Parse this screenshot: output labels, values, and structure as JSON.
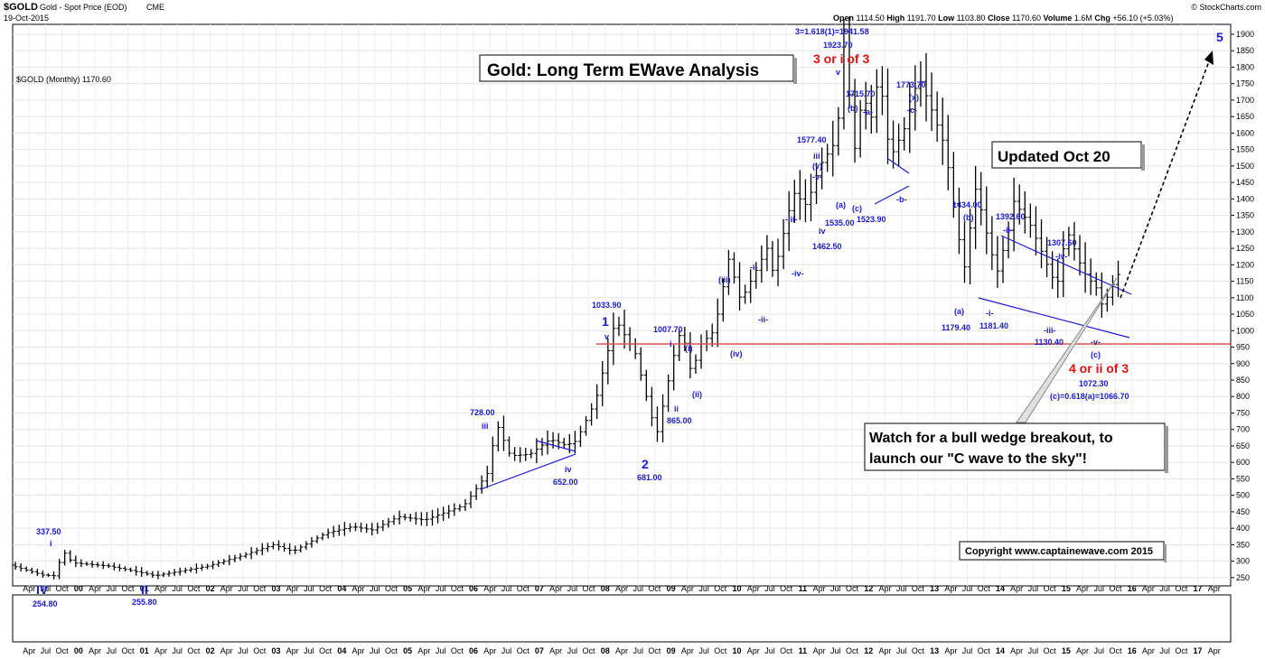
{
  "header": {
    "symbol": "$GOLD",
    "name": "Gold - Spot Price (EOD)",
    "exchange": "CME",
    "date": "19-Oct-2015",
    "brand": "© StockCharts.com",
    "open_label": "Open",
    "open": "1114.50",
    "high_label": "High",
    "high": "1191.70",
    "low_label": "Low",
    "low": "1103.80",
    "close_label": "Close",
    "close": "1170.60",
    "volume_label": "Volume",
    "volume": "1.6M",
    "chg_label": "Chg",
    "chg": "+56.10 (+5.03%)",
    "legend": "$GOLD (Monthly) 1170.60"
  },
  "colors": {
    "bars": "#000000",
    "wave": "#1a1ad0",
    "red": "#e01010",
    "support": "#e05050",
    "grid": "#dddddd"
  },
  "chart_data": {
    "type": "ohlc",
    "title": "Gold: Long Term EWave Analysis",
    "ylim": [
      225,
      1930
    ],
    "y_ticks": [
      250,
      300,
      350,
      400,
      450,
      500,
      550,
      600,
      650,
      700,
      750,
      800,
      850,
      900,
      950,
      1000,
      1050,
      1100,
      1150,
      1200,
      1250,
      1300,
      1350,
      1400,
      1450,
      1500,
      1550,
      1600,
      1650,
      1700,
      1750,
      1800,
      1850,
      1900
    ],
    "x_ticks": [
      {
        "t": 1999.25,
        "label": "Apr"
      },
      {
        "t": 1999.5,
        "label": "Jul"
      },
      {
        "t": 1999.75,
        "label": "Oct"
      },
      {
        "t": 2000,
        "label": "00"
      },
      {
        "t": 2000.25,
        "label": "Apr"
      },
      {
        "t": 2000.5,
        "label": "Jul"
      },
      {
        "t": 2000.75,
        "label": "Oct"
      },
      {
        "t": 2001,
        "label": "01"
      },
      {
        "t": 2001.25,
        "label": "Apr"
      },
      {
        "t": 2001.5,
        "label": "Jul"
      },
      {
        "t": 2001.75,
        "label": "Oct"
      },
      {
        "t": 2002,
        "label": "02"
      },
      {
        "t": 2002.25,
        "label": "Apr"
      },
      {
        "t": 2002.5,
        "label": "Jul"
      },
      {
        "t": 2002.75,
        "label": "Oct"
      },
      {
        "t": 2003,
        "label": "03"
      },
      {
        "t": 2003.25,
        "label": "Apr"
      },
      {
        "t": 2003.5,
        "label": "Jul"
      },
      {
        "t": 2003.75,
        "label": "Oct"
      },
      {
        "t": 2004,
        "label": "04"
      },
      {
        "t": 2004.25,
        "label": "Apr"
      },
      {
        "t": 2004.5,
        "label": "Jul"
      },
      {
        "t": 2004.75,
        "label": "Oct"
      },
      {
        "t": 2005,
        "label": "05"
      },
      {
        "t": 2005.25,
        "label": "Apr"
      },
      {
        "t": 2005.5,
        "label": "Jul"
      },
      {
        "t": 2005.75,
        "label": "Oct"
      },
      {
        "t": 2006,
        "label": "06"
      },
      {
        "t": 2006.25,
        "label": "Apr"
      },
      {
        "t": 2006.5,
        "label": "Jul"
      },
      {
        "t": 2006.75,
        "label": "Oct"
      },
      {
        "t": 2007,
        "label": "07"
      },
      {
        "t": 2007.25,
        "label": "Apr"
      },
      {
        "t": 2007.5,
        "label": "Jul"
      },
      {
        "t": 2007.75,
        "label": "Oct"
      },
      {
        "t": 2008,
        "label": "08"
      },
      {
        "t": 2008.25,
        "label": "Apr"
      },
      {
        "t": 2008.5,
        "label": "Jul"
      },
      {
        "t": 2008.75,
        "label": "Oct"
      },
      {
        "t": 2009,
        "label": "09"
      },
      {
        "t": 2009.25,
        "label": "Apr"
      },
      {
        "t": 2009.5,
        "label": "Jul"
      },
      {
        "t": 2009.75,
        "label": "Oct"
      },
      {
        "t": 2010,
        "label": "10"
      },
      {
        "t": 2010.25,
        "label": "Apr"
      },
      {
        "t": 2010.5,
        "label": "Jul"
      },
      {
        "t": 2010.75,
        "label": "Oct"
      },
      {
        "t": 2011,
        "label": "11"
      },
      {
        "t": 2011.25,
        "label": "Apr"
      },
      {
        "t": 2011.5,
        "label": "Jul"
      },
      {
        "t": 2011.75,
        "label": "Oct"
      },
      {
        "t": 2012,
        "label": "12"
      },
      {
        "t": 2012.25,
        "label": "Apr"
      },
      {
        "t": 2012.5,
        "label": "Jul"
      },
      {
        "t": 2012.75,
        "label": "Oct"
      },
      {
        "t": 2013,
        "label": "13"
      },
      {
        "t": 2013.25,
        "label": "Apr"
      },
      {
        "t": 2013.5,
        "label": "Jul"
      },
      {
        "t": 2013.75,
        "label": "Oct"
      },
      {
        "t": 2014,
        "label": "14"
      },
      {
        "t": 2014.25,
        "label": "Apr"
      },
      {
        "t": 2014.5,
        "label": "Jul"
      },
      {
        "t": 2014.75,
        "label": "Oct"
      },
      {
        "t": 2015,
        "label": "15"
      },
      {
        "t": 2015.25,
        "label": "Apr"
      },
      {
        "t": 2015.5,
        "label": "Jul"
      },
      {
        "t": 2015.75,
        "label": "Oct"
      },
      {
        "t": 2016,
        "label": "16"
      },
      {
        "t": 2016.25,
        "label": "Apr"
      },
      {
        "t": 2016.5,
        "label": "Jul"
      },
      {
        "t": 2016.75,
        "label": "Oct"
      },
      {
        "t": 2017,
        "label": "17"
      },
      {
        "t": 2017.25,
        "label": "Apr"
      }
    ],
    "price_path": [
      [
        1999.0,
        288
      ],
      [
        1999.5,
        258
      ],
      [
        1999.72,
        254.8
      ],
      [
        1999.78,
        337.5
      ],
      [
        1999.95,
        295
      ],
      [
        2000.5,
        285
      ],
      [
        2001.0,
        265
      ],
      [
        2001.2,
        255.8
      ],
      [
        2001.6,
        270
      ],
      [
        2002.0,
        285
      ],
      [
        2002.5,
        315
      ],
      [
        2003.0,
        350
      ],
      [
        2003.3,
        330
      ],
      [
        2003.8,
        385
      ],
      [
        2004.2,
        405
      ],
      [
        2004.5,
        395
      ],
      [
        2004.9,
        435
      ],
      [
        2005.3,
        425
      ],
      [
        2005.9,
        470
      ],
      [
        2006.3,
        580
      ],
      [
        2006.37,
        728
      ],
      [
        2006.6,
        620
      ],
      [
        2006.9,
        625
      ],
      [
        2007.2,
        670
      ],
      [
        2007.45,
        652
      ],
      [
        2007.6,
        665
      ],
      [
        2007.9,
        790
      ],
      [
        2008.2,
        1033.9
      ],
      [
        2008.5,
        930
      ],
      [
        2008.82,
        681
      ],
      [
        2009.1,
        940
      ],
      [
        2009.2,
        1007.7
      ],
      [
        2009.35,
        870
      ],
      [
        2009.5,
        960
      ],
      [
        2009.7,
        1000
      ],
      [
        2009.92,
        1220
      ],
      [
        2010.1,
        1090
      ],
      [
        2010.5,
        1250
      ],
      [
        2010.6,
        1170
      ],
      [
        2010.9,
        1420
      ],
      [
        2011.1,
        1380
      ],
      [
        2011.3,
        1500
      ],
      [
        2011.55,
        1577.4
      ],
      [
        2011.63,
        1740
      ],
      [
        2011.67,
        1923.7
      ],
      [
        2011.82,
        1535
      ],
      [
        2011.95,
        1715.7
      ],
      [
        2012.1,
        1640
      ],
      [
        2012.2,
        1790
      ],
      [
        2012.37,
        1523.9
      ],
      [
        2012.6,
        1620
      ],
      [
        2012.8,
        1773.7
      ],
      [
        2013.0,
        1670
      ],
      [
        2013.2,
        1560
      ],
      [
        2013.3,
        1430
      ],
      [
        2013.49,
        1179.4
      ],
      [
        2013.67,
        1434
      ],
      [
        2013.9,
        1240
      ],
      [
        2014.0,
        1181.4
      ],
      [
        2014.2,
        1330
      ],
      [
        2014.25,
        1392.6
      ],
      [
        2014.5,
        1320
      ],
      [
        2014.9,
        1130.4
      ],
      [
        2015.05,
        1307.6
      ],
      [
        2015.3,
        1180
      ],
      [
        2015.5,
        1130
      ],
      [
        2015.55,
        1072.3
      ],
      [
        2015.7,
        1110
      ],
      [
        2015.8,
        1170.6
      ]
    ],
    "annotations": [
      {
        "t": 1999.8,
        "v": 1870,
        "text": "337.50",
        "size": "s"
      },
      {
        "t": 1999.8,
        "v": 1900,
        "text": "i",
        "size": "s"
      },
      {
        "t": 1999.7,
        "v": 1600,
        "text": "IV",
        "size": "m"
      },
      {
        "t": 1999.75,
        "v": 1500,
        "text": "254.80",
        "size": "s"
      },
      {
        "t": 2001.2,
        "v": 1600,
        "text": "II",
        "size": "m"
      },
      {
        "t": 2001.2,
        "v": 1500,
        "text": "255.80",
        "size": "s"
      }
    ]
  },
  "labels": {
    "w337": "337.50",
    "w337i": "i",
    "w254": "254.80",
    "wIV": "IV",
    "w255": "255.80",
    "wII": "II",
    "w728": "728.00",
    "w728iii": "iii",
    "w652": "652.00",
    "w652iv": "iv",
    "w1033": "1033.90",
    "w1033one": "1",
    "w1033v": "v",
    "w681": "681.00",
    "w681two": "2",
    "w1007": "1007.70",
    "w1007i": "i",
    "w865": "865.00",
    "w865ii": "ii",
    "wpi": "(i)",
    "wpii": "(ii)",
    "wpiii": "(iii)",
    "wpiv": "(iv)",
    "wdashi": "-i-",
    "wdashii": "-ii-",
    "wdashiii": "-iii-",
    "wdashiv": "-iv-",
    "w1462": "1462.50",
    "w1462iv": "iv",
    "w1577": "1577.40",
    "w1577iii": "iii",
    "w1577pv": "(v)",
    "w1577v": "-v-",
    "w1535": "1535.00",
    "wpa1": "(a)",
    "wpc1": "(c)",
    "w1941": "3=1.618(1)=1941.58",
    "w1923": "1923.70",
    "w3ori": "3 or i of 3",
    "w1923v": "v",
    "w1715": "1715.70",
    "wpb1": "(b)",
    "wa1": "-a-",
    "w1523": "1523.90",
    "wb1": "-b-",
    "w1773": "1773.70",
    "wpx": "(x)",
    "wc1": "-c-",
    "w1434": "1434.00",
    "wpb2": "(b)",
    "w1179": "1179.40",
    "wpa2": "(a)",
    "w1392": "1392.60",
    "wdii2": "-ii-",
    "w1181": "1181.40",
    "wdi2": "-i-",
    "w1307": "1307.60",
    "wdiv2": "-iv-",
    "w1130": "1130.40",
    "wdiii2": "-iii-",
    "wdv2": "-v-",
    "wpc2": "(c)",
    "w4orii": "4 or ii of 3",
    "w1072": "1072.30",
    "w1066": "(c)=0.618(a)=1066.70",
    "w5": "5",
    "updated": "Updated Oct 20",
    "watch1": "Watch for a bull wedge breakout, to",
    "watch2": "launch our \"C wave to the sky\"!",
    "copyright": "Copyright   www.captainewave.com 2015"
  }
}
